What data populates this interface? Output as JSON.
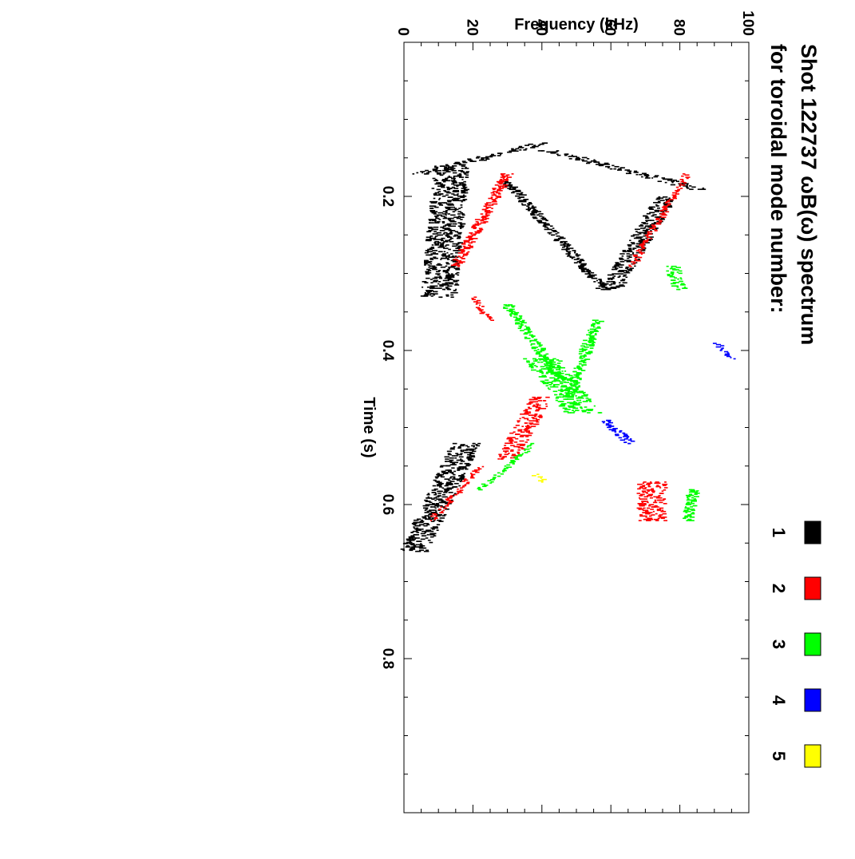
{
  "chart_data": {
    "type": "heatmap",
    "title_line1": "Shot 122737 ωB(ω) spectrum",
    "title_line2": "for toroidal mode number:",
    "xlabel": "Time (s)",
    "ylabel": "Frequency (kHz)",
    "xlim": [
      0.0,
      1.0
    ],
    "ylim": [
      0,
      100
    ],
    "x_ticks": [
      {
        "value": 0.2,
        "label": "0.2"
      },
      {
        "value": 0.4,
        "label": "0.4"
      },
      {
        "value": 0.6,
        "label": "0.6"
      },
      {
        "value": 0.8,
        "label": "0.8"
      }
    ],
    "y_ticks": [
      {
        "value": 0,
        "label": "0"
      },
      {
        "value": 20,
        "label": "20"
      },
      {
        "value": 40,
        "label": "40"
      },
      {
        "value": 60,
        "label": "60"
      },
      {
        "value": 80,
        "label": "80"
      },
      {
        "value": 100,
        "label": "100"
      }
    ],
    "legend": [
      {
        "label": "1",
        "color": "#000000"
      },
      {
        "label": "2",
        "color": "#ff0000"
      },
      {
        "label": "3",
        "color": "#00ff00"
      },
      {
        "label": "4",
        "color": "#0000ff"
      },
      {
        "label": "5",
        "color": "#ffff00"
      }
    ],
    "figure_rotation_deg": 90,
    "series": [
      {
        "mode": "1",
        "color": "#000000",
        "segments": [
          {
            "t0": 0.13,
            "t1": 0.17,
            "f0": 40,
            "f1": 5,
            "thickness": 6
          },
          {
            "t0": 0.14,
            "t1": 0.19,
            "f0": 42,
            "f1": 86,
            "thickness": 6
          },
          {
            "t0": 0.16,
            "t1": 0.33,
            "f0": 14,
            "f1": 10,
            "thickness": 10
          },
          {
            "t0": 0.2,
            "t1": 0.32,
            "f0": 76,
            "f1": 60,
            "thickness": 6
          },
          {
            "t0": 0.18,
            "t1": 0.32,
            "f0": 30,
            "f1": 58,
            "thickness": 3
          },
          {
            "t0": 0.52,
            "t1": 0.66,
            "f0": 18,
            "f1": 3,
            "thickness": 8
          }
        ]
      },
      {
        "mode": "2",
        "color": "#ff0000",
        "segments": [
          {
            "t0": 0.17,
            "t1": 0.29,
            "f0": 30,
            "f1": 15,
            "thickness": 3
          },
          {
            "t0": 0.17,
            "t1": 0.29,
            "f0": 82,
            "f1": 66,
            "thickness": 2
          },
          {
            "t0": 0.33,
            "t1": 0.36,
            "f0": 20,
            "f1": 25,
            "thickness": 2
          },
          {
            "t0": 0.46,
            "t1": 0.54,
            "f0": 40,
            "f1": 30,
            "thickness": 6
          },
          {
            "t0": 0.55,
            "t1": 0.62,
            "f0": 22,
            "f1": 8,
            "thickness": 2
          },
          {
            "t0": 0.57,
            "t1": 0.62,
            "f0": 72,
            "f1": 72,
            "thickness": 8
          }
        ]
      },
      {
        "mode": "3",
        "color": "#00ff00",
        "segments": [
          {
            "t0": 0.34,
            "t1": 0.44,
            "f0": 30,
            "f1": 46,
            "thickness": 3
          },
          {
            "t0": 0.36,
            "t1": 0.46,
            "f0": 56,
            "f1": 48,
            "thickness": 3
          },
          {
            "t0": 0.41,
            "t1": 0.48,
            "f0": 40,
            "f1": 52,
            "thickness": 10
          },
          {
            "t0": 0.52,
            "t1": 0.58,
            "f0": 38,
            "f1": 22,
            "thickness": 2
          },
          {
            "t0": 0.29,
            "t1": 0.32,
            "f0": 78,
            "f1": 80,
            "thickness": 4
          },
          {
            "t0": 0.58,
            "t1": 0.62,
            "f0": 84,
            "f1": 82,
            "thickness": 3
          }
        ]
      },
      {
        "mode": "4",
        "color": "#0000ff",
        "segments": [
          {
            "t0": 0.49,
            "t1": 0.52,
            "f0": 58,
            "f1": 66,
            "thickness": 3
          },
          {
            "t0": 0.39,
            "t1": 0.41,
            "f0": 91,
            "f1": 95,
            "thickness": 2
          }
        ]
      },
      {
        "mode": "5",
        "color": "#ffff00",
        "segments": [
          {
            "t0": 0.56,
            "t1": 0.57,
            "f0": 38,
            "f1": 41,
            "thickness": 2
          }
        ]
      }
    ]
  }
}
